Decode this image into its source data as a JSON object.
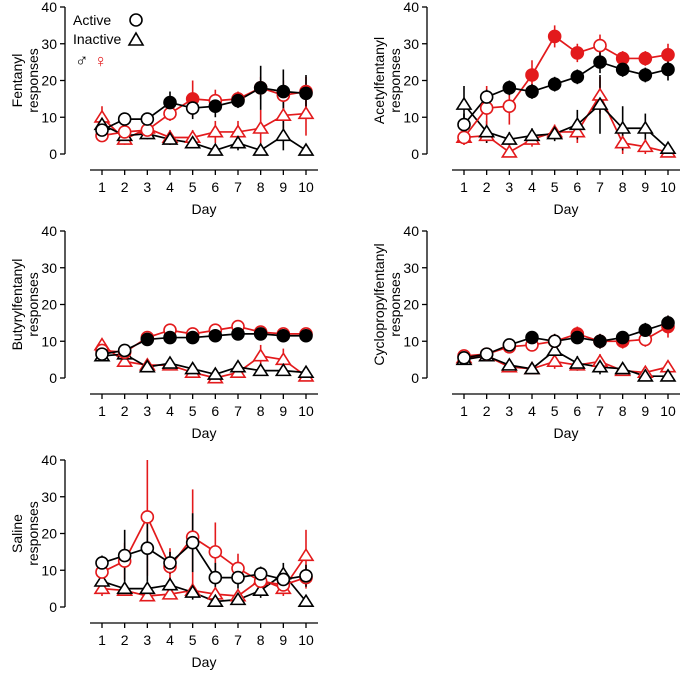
{
  "colors": {
    "male": "#000000",
    "female": "#e31a1c"
  },
  "legend": {
    "active_label": "Active",
    "inactive_label": "Inactive",
    "male_symbol": "♂",
    "female_symbol": "♀"
  },
  "chart_data": [
    {
      "type": "line",
      "panel": "fentanyl",
      "ylabel_lines": [
        "Fentanyl",
        "responses"
      ],
      "xlabel": "Day",
      "x": [
        1,
        2,
        3,
        4,
        5,
        6,
        7,
        8,
        9,
        10
      ],
      "ylim": [
        0,
        40
      ],
      "yticks": [
        0,
        10,
        20,
        30,
        40
      ],
      "series": [
        {
          "name": "Male Active",
          "sex": "male",
          "lever": "active",
          "values": [
            6.5,
            9.5,
            9.5,
            14,
            12.5,
            13,
            14.5,
            18,
            17,
            16.5
          ],
          "errors": [
            2,
            1.5,
            1.5,
            3,
            3,
            3,
            2,
            6,
            6,
            5
          ],
          "filled": [
            false,
            false,
            false,
            true,
            false,
            true,
            true,
            true,
            true,
            true
          ]
        },
        {
          "name": "Female Active",
          "sex": "female",
          "lever": "active",
          "values": [
            5,
            6,
            6.5,
            11,
            15,
            14.5,
            15,
            18,
            16,
            17
          ],
          "errors": [
            1.5,
            1,
            1,
            2,
            5,
            3,
            2,
            3,
            4,
            4
          ],
          "filled": [
            false,
            false,
            false,
            false,
            true,
            false,
            true,
            true,
            false,
            true
          ]
        },
        {
          "name": "Male Inactive",
          "sex": "male",
          "lever": "inactive",
          "values": [
            8,
            5,
            5.5,
            4,
            3,
            1,
            3,
            1,
            5,
            1
          ],
          "errors": [
            2,
            1.5,
            1.5,
            1.5,
            1,
            1,
            2,
            1,
            4,
            1
          ]
        },
        {
          "name": "Female Inactive",
          "sex": "female",
          "lever": "inactive",
          "values": [
            10,
            4,
            7,
            4.5,
            4.5,
            6,
            6,
            7,
            10.5,
            11
          ],
          "errors": [
            3,
            1.5,
            2,
            2,
            2,
            3,
            3,
            5,
            6,
            6
          ]
        }
      ]
    },
    {
      "type": "line",
      "panel": "acetylfentanyl",
      "ylabel_lines": [
        "Acetylfentanyl",
        "responses"
      ],
      "xlabel": "Day",
      "x": [
        1,
        2,
        3,
        4,
        5,
        6,
        7,
        8,
        9,
        10
      ],
      "ylim": [
        0,
        40
      ],
      "yticks": [
        0,
        10,
        20,
        30,
        40
      ],
      "series": [
        {
          "name": "Male Active",
          "sex": "male",
          "lever": "active",
          "values": [
            8,
            15.5,
            18,
            17,
            19,
            21,
            25,
            23,
            21.5,
            23
          ],
          "errors": [
            3,
            2,
            2,
            2,
            2,
            2,
            3,
            2,
            2,
            3
          ],
          "filled": [
            false,
            false,
            true,
            true,
            true,
            true,
            true,
            true,
            true,
            true
          ]
        },
        {
          "name": "Female Active",
          "sex": "female",
          "lever": "active",
          "values": [
            4.5,
            12.5,
            13,
            21.5,
            32,
            27.5,
            29.5,
            26,
            26,
            27
          ],
          "errors": [
            2,
            6,
            5,
            4,
            3,
            2.5,
            3,
            2,
            2,
            3
          ],
          "filled": [
            false,
            false,
            false,
            true,
            true,
            true,
            false,
            true,
            true,
            true
          ]
        },
        {
          "name": "Male Inactive",
          "sex": "male",
          "lever": "inactive",
          "values": [
            13.5,
            6,
            4,
            5,
            5.5,
            8,
            13.5,
            7,
            7,
            1.5
          ],
          "errors": [
            5,
            3,
            2,
            2,
            2,
            4,
            8,
            6,
            4,
            1
          ]
        },
        {
          "name": "Female Inactive",
          "sex": "female",
          "lever": "inactive",
          "values": [
            4.5,
            5,
            0.5,
            4,
            6,
            6,
            16,
            3,
            2,
            0.5
          ],
          "errors": [
            2,
            2,
            1,
            2,
            2,
            3,
            5,
            3,
            2,
            1
          ]
        }
      ]
    },
    {
      "type": "line",
      "panel": "butyrylfentanyl",
      "ylabel_lines": [
        "Butyrylfentanyl",
        "responses"
      ],
      "xlabel": "Day",
      "x": [
        1,
        2,
        3,
        4,
        5,
        6,
        7,
        8,
        9,
        10
      ],
      "ylim": [
        0,
        40
      ],
      "yticks": [
        0,
        10,
        20,
        30,
        40
      ],
      "series": [
        {
          "name": "Male Active",
          "sex": "male",
          "lever": "active",
          "values": [
            6.5,
            7.5,
            10.5,
            11,
            11,
            11.5,
            12,
            12,
            11.5,
            11.5
          ],
          "errors": [
            1.5,
            1,
            1,
            1,
            1,
            1,
            1,
            1,
            1,
            1
          ],
          "filled": [
            false,
            false,
            true,
            true,
            true,
            true,
            true,
            true,
            true,
            true
          ]
        },
        {
          "name": "Female Active",
          "sex": "female",
          "lever": "active",
          "values": [
            7.5,
            7,
            11,
            13,
            12,
            13,
            14,
            12.5,
            12,
            12
          ],
          "errors": [
            1.5,
            1,
            1,
            1,
            1,
            1,
            1.5,
            1,
            1,
            1
          ]
        },
        {
          "name": "Male Inactive",
          "sex": "male",
          "lever": "inactive",
          "values": [
            6,
            6.5,
            3,
            4,
            2.5,
            1,
            3,
            2,
            2,
            1.5
          ],
          "errors": [
            1,
            1,
            1,
            1,
            1,
            1,
            1,
            1,
            1,
            1
          ]
        },
        {
          "name": "Female Inactive",
          "sex": "female",
          "lever": "inactive",
          "values": [
            9,
            4.5,
            3.5,
            3.5,
            1.5,
            0,
            1.5,
            6,
            5,
            0.5
          ],
          "errors": [
            1.5,
            1,
            1,
            1,
            1,
            1,
            1,
            3,
            3,
            1
          ]
        }
      ]
    },
    {
      "type": "line",
      "panel": "cyclopropylfentanyl",
      "ylabel_lines": [
        "Cyclopropylfentanyl",
        "responses"
      ],
      "xlabel": "Day",
      "x": [
        1,
        2,
        3,
        4,
        5,
        6,
        7,
        8,
        9,
        10
      ],
      "ylim": [
        0,
        40
      ],
      "yticks": [
        0,
        10,
        20,
        30,
        40
      ],
      "series": [
        {
          "name": "Male Active",
          "sex": "male",
          "lever": "active",
          "values": [
            5.5,
            6.5,
            9,
            11,
            10,
            11,
            10,
            11,
            13,
            15
          ],
          "errors": [
            1,
            1,
            1,
            1,
            2,
            1.5,
            2,
            1.5,
            2,
            2
          ],
          "filled": [
            false,
            false,
            false,
            true,
            false,
            true,
            true,
            true,
            true,
            true
          ]
        },
        {
          "name": "Female Active",
          "sex": "female",
          "lever": "active",
          "values": [
            6,
            6.5,
            8.5,
            9,
            10,
            12,
            10,
            10,
            10.5,
            14
          ],
          "errors": [
            1,
            1,
            1,
            1,
            2,
            2,
            2,
            2,
            2,
            3
          ],
          "filled": [
            false,
            false,
            false,
            false,
            false,
            true,
            false,
            true,
            false,
            true
          ]
        },
        {
          "name": "Male Inactive",
          "sex": "male",
          "lever": "inactive",
          "values": [
            5,
            6,
            3.5,
            2.5,
            7.5,
            4,
            3,
            2.5,
            0.5,
            0.5
          ],
          "errors": [
            1,
            1,
            1,
            1,
            3,
            2,
            2,
            1,
            1,
            1
          ]
        },
        {
          "name": "Female Inactive",
          "sex": "female",
          "lever": "inactive",
          "values": [
            5.5,
            6,
            3,
            2.5,
            4.5,
            3.5,
            4.5,
            2,
            1.5,
            3
          ],
          "errors": [
            1,
            1,
            1,
            1,
            2,
            1.5,
            2,
            1,
            1,
            1.5
          ]
        }
      ]
    },
    {
      "type": "line",
      "panel": "saline",
      "ylabel_lines": [
        "Saline",
        "responses"
      ],
      "xlabel": "Day",
      "x": [
        1,
        2,
        3,
        4,
        5,
        6,
        7,
        8,
        9,
        10
      ],
      "ylim": [
        0,
        40
      ],
      "yticks": [
        0,
        10,
        20,
        30,
        40
      ],
      "series": [
        {
          "name": "Male Active",
          "sex": "male",
          "lever": "active",
          "values": [
            12,
            14,
            16,
            12,
            17.5,
            8,
            8,
            9,
            7.5,
            8.5
          ],
          "errors": [
            2,
            7,
            9,
            3,
            8,
            4,
            3,
            2,
            2,
            3
          ]
        },
        {
          "name": "Female Active",
          "sex": "female",
          "lever": "active",
          "values": [
            9.5,
            12.5,
            24.5,
            11,
            19,
            15,
            10.5,
            7,
            6,
            8
          ],
          "errors": [
            2,
            5,
            16,
            5,
            13,
            8,
            4,
            2,
            2,
            3
          ]
        },
        {
          "name": "Male Inactive",
          "sex": "male",
          "lever": "inactive",
          "values": [
            7,
            5,
            5,
            6,
            4,
            1.5,
            2,
            4.5,
            9,
            1.5
          ],
          "errors": [
            2,
            2,
            2,
            2,
            2,
            1,
            1,
            2,
            3,
            1
          ]
        },
        {
          "name": "Female Inactive",
          "sex": "female",
          "lever": "inactive",
          "values": [
            5,
            4.5,
            3,
            3.5,
            4.5,
            3.5,
            3,
            7.5,
            5,
            14
          ],
          "errors": [
            2,
            1,
            1,
            1,
            2,
            1,
            1,
            2,
            2,
            7
          ]
        }
      ]
    }
  ]
}
